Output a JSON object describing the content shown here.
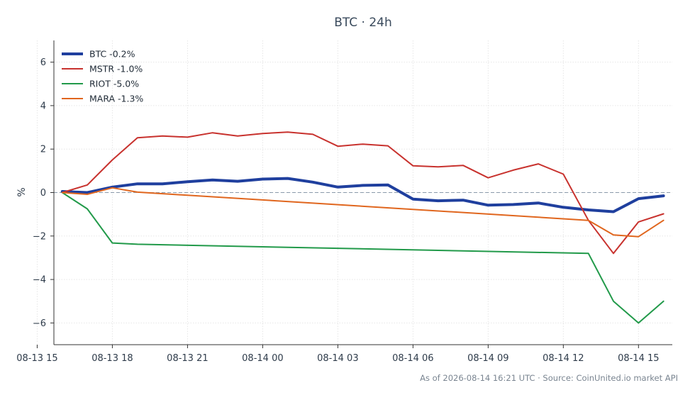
{
  "chart_data": {
    "type": "line",
    "title": "BTC · 24h",
    "xlabel": "",
    "ylabel": "%",
    "xlim": [
      "2026-08-13 15:40",
      "2026-08-14 16:21"
    ],
    "ylim": [
      -7,
      7
    ],
    "x_ticks": [
      {
        "t": "2026-08-13 15:00",
        "label": "08-13 15"
      },
      {
        "t": "2026-08-13 18:00",
        "label": "08-13 18"
      },
      {
        "t": "2026-08-13 21:00",
        "label": "08-13 21"
      },
      {
        "t": "2026-08-14 00:00",
        "label": "08-14 00"
      },
      {
        "t": "2026-08-14 03:00",
        "label": "08-14 03"
      },
      {
        "t": "2026-08-14 06:00",
        "label": "08-14 06"
      },
      {
        "t": "2026-08-14 09:00",
        "label": "08-14 09"
      },
      {
        "t": "2026-08-14 12:00",
        "label": "08-14 12"
      },
      {
        "t": "2026-08-14 15:00",
        "label": "08-14 15"
      }
    ],
    "y_ticks": [
      {
        "v": 6,
        "label": "6"
      },
      {
        "v": 4,
        "label": "4"
      },
      {
        "v": 2,
        "label": "2"
      },
      {
        "v": 0,
        "label": "0"
      },
      {
        "v": -2,
        "label": "−2"
      },
      {
        "v": -4,
        "label": "−4"
      },
      {
        "v": -6,
        "label": "−6"
      }
    ],
    "zero_line": true,
    "grid": true,
    "legend_position": "top-left",
    "series": [
      {
        "name": "BTC -0.2%",
        "color": "#1f3f9e",
        "width": 4,
        "points": [
          [
            "2026-08-13 16:00",
            0.05
          ],
          [
            "2026-08-13 17:00",
            0.0
          ],
          [
            "2026-08-13 18:00",
            0.25
          ],
          [
            "2026-08-13 19:00",
            0.4
          ],
          [
            "2026-08-13 20:00",
            0.4
          ],
          [
            "2026-08-13 21:00",
            0.5
          ],
          [
            "2026-08-13 22:00",
            0.58
          ],
          [
            "2026-08-13 23:00",
            0.52
          ],
          [
            "2026-08-14 00:00",
            0.62
          ],
          [
            "2026-08-14 01:00",
            0.65
          ],
          [
            "2026-08-14 02:00",
            0.48
          ],
          [
            "2026-08-14 03:00",
            0.25
          ],
          [
            "2026-08-14 04:00",
            0.33
          ],
          [
            "2026-08-14 05:00",
            0.35
          ],
          [
            "2026-08-14 06:00",
            -0.3
          ],
          [
            "2026-08-14 07:00",
            -0.38
          ],
          [
            "2026-08-14 08:00",
            -0.35
          ],
          [
            "2026-08-14 09:00",
            -0.58
          ],
          [
            "2026-08-14 10:00",
            -0.55
          ],
          [
            "2026-08-14 11:00",
            -0.48
          ],
          [
            "2026-08-14 12:00",
            -0.68
          ],
          [
            "2026-08-14 13:00",
            -0.8
          ],
          [
            "2026-08-14 14:00",
            -0.88
          ],
          [
            "2026-08-14 15:00",
            -0.28
          ],
          [
            "2026-08-14 16:00",
            -0.15
          ]
        ]
      },
      {
        "name": "MSTR -1.0%",
        "color": "#c8322e",
        "width": 2,
        "points": [
          [
            "2026-08-13 16:00",
            0.0
          ],
          [
            "2026-08-13 17:00",
            0.35
          ],
          [
            "2026-08-13 18:00",
            1.5
          ],
          [
            "2026-08-13 19:00",
            2.52
          ],
          [
            "2026-08-13 20:00",
            2.6
          ],
          [
            "2026-08-13 21:00",
            2.55
          ],
          [
            "2026-08-13 22:00",
            2.75
          ],
          [
            "2026-08-13 23:00",
            2.6
          ],
          [
            "2026-08-14 00:00",
            2.72
          ],
          [
            "2026-08-14 01:00",
            2.78
          ],
          [
            "2026-08-14 02:00",
            2.68
          ],
          [
            "2026-08-14 03:00",
            2.13
          ],
          [
            "2026-08-14 04:00",
            2.23
          ],
          [
            "2026-08-14 05:00",
            2.15
          ],
          [
            "2026-08-14 06:00",
            1.23
          ],
          [
            "2026-08-14 07:00",
            1.18
          ],
          [
            "2026-08-14 08:00",
            1.25
          ],
          [
            "2026-08-14 09:00",
            0.68
          ],
          [
            "2026-08-14 10:00",
            1.03
          ],
          [
            "2026-08-14 11:00",
            1.32
          ],
          [
            "2026-08-14 12:00",
            0.85
          ],
          [
            "2026-08-14 13:00",
            -1.28
          ],
          [
            "2026-08-14 14:00",
            -2.8
          ],
          [
            "2026-08-14 15:00",
            -1.35
          ],
          [
            "2026-08-14 16:00",
            -0.98
          ]
        ]
      },
      {
        "name": "RIOT -5.0%",
        "color": "#229a4a",
        "width": 2,
        "points": [
          [
            "2026-08-13 16:00",
            0.0
          ],
          [
            "2026-08-13 17:00",
            -0.75
          ],
          [
            "2026-08-13 18:00",
            -2.32
          ],
          [
            "2026-08-13 19:00",
            -2.38
          ],
          [
            "2026-08-14 13:00",
            -2.8
          ],
          [
            "2026-08-14 14:00",
            -5.0
          ],
          [
            "2026-08-14 15:00",
            -6.0
          ],
          [
            "2026-08-14 16:00",
            -5.0
          ]
        ]
      },
      {
        "name": "MARA -1.3%",
        "color": "#e0661e",
        "width": 2,
        "points": [
          [
            "2026-08-13 16:00",
            0.0
          ],
          [
            "2026-08-13 17:00",
            -0.08
          ],
          [
            "2026-08-13 18:00",
            0.22
          ],
          [
            "2026-08-13 19:00",
            0.02
          ],
          [
            "2026-08-14 13:00",
            -1.28
          ],
          [
            "2026-08-14 14:00",
            -1.95
          ],
          [
            "2026-08-14 15:00",
            -2.03
          ],
          [
            "2026-08-14 16:00",
            -1.28
          ]
        ]
      }
    ],
    "footer": "As of 2026-08-14 16:21 UTC · Source: CoinUnited.io market API"
  }
}
